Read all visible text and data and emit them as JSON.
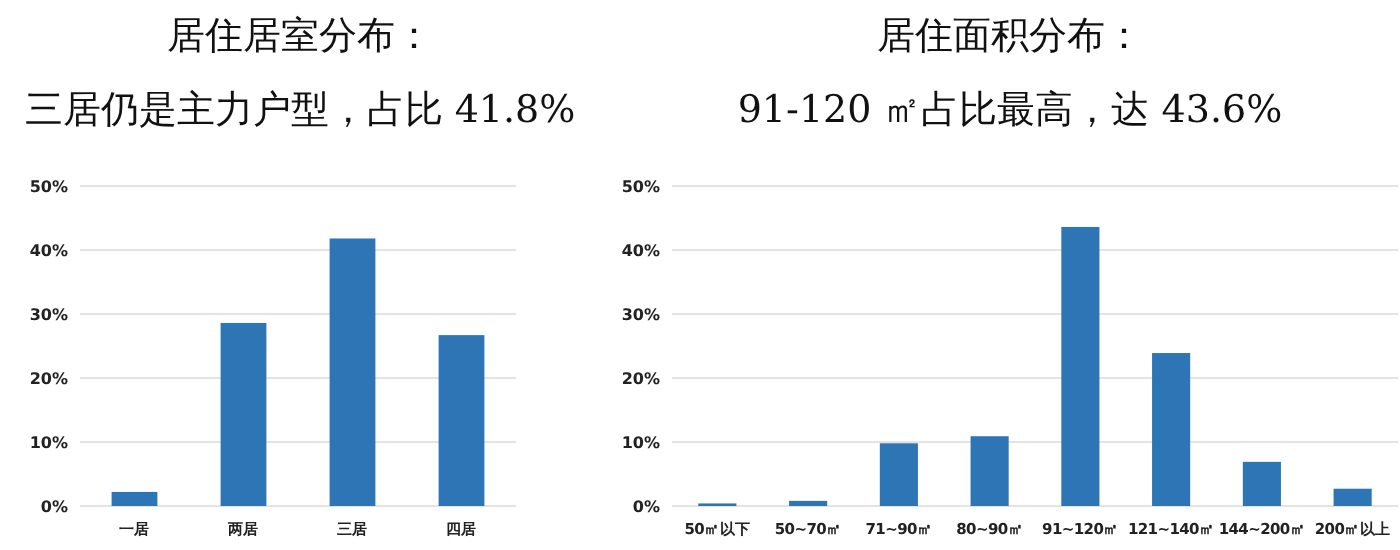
{
  "chart_data": [
    {
      "type": "bar",
      "title": "居住居室分布：",
      "subtitle": "三居仍是主力户型，占比 41.8%",
      "categories": [
        "一居",
        "两居",
        "三居",
        "四居"
      ],
      "values": [
        2.2,
        28.6,
        41.8,
        26.7
      ],
      "color": "#2e75b6",
      "ylim": [
        0,
        50
      ],
      "yticks": [
        {
          "value": 0,
          "label": "0%"
        },
        {
          "value": 10,
          "label": "10%"
        },
        {
          "value": 20,
          "label": "20%"
        },
        {
          "value": 30,
          "label": "30%"
        },
        {
          "value": 40,
          "label": "40%"
        },
        {
          "value": 50,
          "label": "50%"
        }
      ],
      "grid": "y"
    },
    {
      "type": "bar",
      "title": "居住面积分布：",
      "subtitle": "91-120 ㎡占比最高，达 43.6%",
      "categories": [
        "50㎡以下",
        "50~70㎡",
        "71~90㎡",
        "80~90㎡",
        "91~120㎡",
        "121~140㎡",
        "144~200㎡",
        "200㎡以上"
      ],
      "values": [
        0.4,
        0.8,
        9.8,
        10.9,
        43.6,
        23.9,
        6.9,
        2.7
      ],
      "color": "#2e75b6",
      "ylim": [
        0,
        50
      ],
      "yticks": [
        {
          "value": 0,
          "label": "0%"
        },
        {
          "value": 10,
          "label": "10%"
        },
        {
          "value": 20,
          "label": "20%"
        },
        {
          "value": 30,
          "label": "30%"
        },
        {
          "value": 40,
          "label": "40%"
        },
        {
          "value": 50,
          "label": "50%"
        }
      ],
      "grid": "y"
    }
  ]
}
